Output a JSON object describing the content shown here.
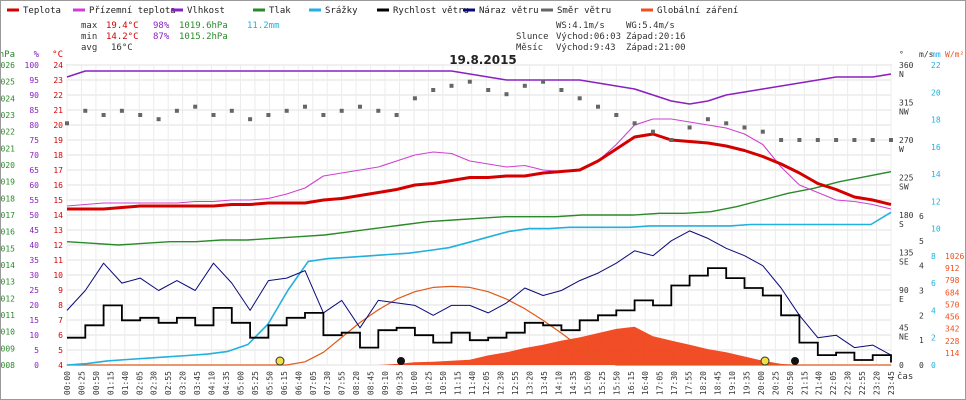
{
  "legend": [
    {
      "label": "Teplota",
      "color": "#d40000"
    },
    {
      "label": "Přízemní teplota",
      "color": "#d040d0"
    },
    {
      "label": "Vlhkost",
      "color": "#8a20c0"
    },
    {
      "label": "Tlak",
      "color": "#2a8a2a"
    },
    {
      "label": "Srážky",
      "color": "#22b0e0"
    },
    {
      "label": "Rychlost větru",
      "color": "#000000"
    },
    {
      "label": "Náraz větru",
      "color": "#0a0a7a"
    },
    {
      "label": "Směr větru",
      "color": "#666666"
    },
    {
      "label": "Globální záření",
      "color": "#f05020"
    }
  ],
  "stats": {
    "max": {
      "label": "max",
      "temp": "19.4°C",
      "hum": "98%",
      "press": "1019.6hPa",
      "rain": "11.2mm"
    },
    "min": {
      "label": "min",
      "temp": "14.2°C",
      "hum": "87%",
      "press": "1015.2hPa"
    },
    "avg": {
      "label": "avg",
      "temp": "16°C"
    }
  },
  "info": {
    "ws": "WS:4.1m/s",
    "wg": "WG:5.4m/s",
    "sun_label": "Slunce",
    "sun_rise": "Východ:06:03",
    "sun_set": "Západ:20:16",
    "moon_label": "Měsíc",
    "moon_rise": "Východ:9:43",
    "moon_set": "Západ:21:00"
  },
  "chart_data": {
    "type": "line",
    "title": "19.8.2015",
    "xlabel": "čas",
    "x_ticks": [
      "00:00",
      "00:25",
      "00:50",
      "01:15",
      "01:40",
      "02:05",
      "02:30",
      "02:55",
      "03:20",
      "03:45",
      "04:10",
      "04:35",
      "05:00",
      "05:25",
      "05:50",
      "06:15",
      "06:40",
      "07:05",
      "07:30",
      "07:55",
      "08:20",
      "08:45",
      "09:10",
      "09:35",
      "10:00",
      "10:25",
      "10:50",
      "11:15",
      "11:40",
      "12:05",
      "12:30",
      "12:55",
      "13:20",
      "13:45",
      "14:10",
      "14:35",
      "15:00",
      "15:25",
      "15:50",
      "16:15",
      "16:40",
      "17:05",
      "17:30",
      "17:55",
      "18:20",
      "18:45",
      "19:10",
      "19:35",
      "20:00",
      "20:25",
      "20:50",
      "21:15",
      "21:40",
      "22:05",
      "22:30",
      "22:55",
      "23:20",
      "23:45"
    ],
    "axes_left": [
      {
        "unit": "hPa",
        "color": "#2a8a2a",
        "ticks": [
          "1026",
          "1025",
          "1024",
          "1023",
          "1022",
          "1021",
          "1020",
          "1019",
          "1018",
          "1017",
          "1016",
          "1015",
          "1014",
          "1013",
          "1012",
          "1011",
          "1010",
          "1009",
          "1008"
        ]
      },
      {
        "unit": "%",
        "color": "#8a20c0",
        "ticks": [
          "100",
          "95",
          "90",
          "85",
          "80",
          "75",
          "70",
          "65",
          "60",
          "55",
          "50",
          "45",
          "40",
          "35",
          "30",
          "25",
          "20",
          "15",
          "10",
          "5",
          "0"
        ]
      },
      {
        "unit": "°C",
        "color": "#d40000",
        "ticks": [
          "24",
          "23",
          "22",
          "21",
          "20",
          "19",
          "18",
          "17",
          "16",
          "15",
          "14",
          "13",
          "12",
          "11",
          "10",
          "9",
          "8",
          "7",
          "6",
          "5",
          "4"
        ]
      }
    ],
    "axes_right": [
      {
        "unit": "°",
        "color": "#333333",
        "ticks": [
          "360",
          "315",
          "270",
          "225",
          "180",
          "135",
          "90",
          "45",
          "0"
        ],
        "labels": [
          "N",
          "NW",
          "W",
          "SW",
          "S",
          "SE",
          "E",
          "NE",
          ""
        ]
      },
      {
        "unit": "m/s",
        "color": "#333333",
        "ticks": [
          "6",
          "5",
          "4",
          "3",
          "2",
          "1",
          "0"
        ]
      },
      {
        "unit": "mm",
        "color": "#22b0e0",
        "ticks": [
          "22",
          "20",
          "18",
          "16",
          "14",
          "12",
          "10",
          "8",
          "6",
          "4",
          "2",
          "0"
        ]
      },
      {
        "unit": "W/m²",
        "color": "#f05020",
        "ticks": [
          "1026",
          "912",
          "798",
          "684",
          "570",
          "456",
          "342",
          "228",
          "114",
          ""
        ]
      }
    ],
    "temp_hourly": [
      14.4,
      14.4,
      14.4,
      14.5,
      14.6,
      14.6,
      14.6,
      14.6,
      14.6,
      14.7,
      14.7,
      14.8,
      14.8,
      14.8,
      15.0,
      15.1,
      15.3,
      15.5,
      15.7,
      16.0,
      16.1,
      16.3,
      16.5,
      16.5,
      16.6,
      16.6,
      16.8,
      16.9,
      17.0,
      17.6,
      18.4,
      19.2,
      19.4,
      19.0,
      18.9,
      18.8,
      18.6,
      18.3,
      17.9,
      17.4,
      16.8,
      16.1,
      15.7,
      15.2,
      15.0,
      14.7
    ],
    "ground_temp_hourly": [
      14.6,
      14.7,
      14.8,
      14.8,
      14.8,
      14.8,
      14.8,
      14.9,
      14.9,
      15.0,
      15.0,
      15.1,
      15.4,
      15.8,
      16.6,
      16.8,
      17.0,
      17.2,
      17.6,
      18.0,
      18.2,
      18.1,
      17.6,
      17.4,
      17.2,
      17.3,
      17.0,
      16.9,
      17.0,
      17.6,
      18.7,
      20.0,
      20.4,
      20.4,
      20.2,
      20.0,
      19.8,
      19.4,
      18.7,
      17.2,
      16.0,
      15.5,
      15.0,
      14.9,
      14.7,
      14.4
    ],
    "humidity_hourly": [
      96,
      98,
      98,
      98,
      98,
      98,
      98,
      98,
      98,
      98,
      98,
      98,
      98,
      98,
      98,
      98,
      98,
      98,
      98,
      98,
      98,
      98,
      97,
      96,
      95,
      95,
      95,
      95,
      95,
      94,
      93,
      92,
      90,
      88,
      87,
      88,
      90,
      91,
      92,
      93,
      94,
      95,
      96,
      96,
      96,
      97
    ],
    "pressure_hourly": [
      1015.4,
      1015.3,
      1015.2,
      1015.3,
      1015.4,
      1015.4,
      1015.5,
      1015.5,
      1015.6,
      1015.7,
      1015.8,
      1016.0,
      1016.2,
      1016.4,
      1016.6,
      1016.7,
      1016.8,
      1016.9,
      1016.9,
      1016.9,
      1017.0,
      1017.0,
      1017.0,
      1017.1,
      1017.1,
      1017.2,
      1017.5,
      1017.9,
      1018.3,
      1018.6,
      1019.0,
      1019.3,
      1019.6
    ],
    "rain_total_hourly": [
      0,
      0.1,
      0.3,
      0.4,
      0.5,
      0.6,
      0.7,
      0.8,
      1.0,
      1.5,
      3.0,
      5.5,
      7.6,
      7.8,
      7.9,
      8.0,
      8.1,
      8.2,
      8.4,
      8.6,
      9.0,
      9.4,
      9.8,
      10.0,
      10.0,
      10.1,
      10.1,
      10.1,
      10.1,
      10.2,
      10.2,
      10.2,
      10.2,
      10.2,
      10.3,
      10.3,
      10.3,
      10.3,
      10.3,
      10.3,
      10.3,
      11.2
    ],
    "wind_speed_hourly": [
      1.1,
      1.6,
      2.4,
      1.8,
      1.9,
      1.7,
      1.9,
      1.6,
      2.3,
      1.7,
      1.1,
      1.6,
      1.9,
      2.1,
      1.2,
      1.3,
      0.7,
      1.4,
      1.5,
      1.2,
      0.9,
      1.3,
      1.0,
      1.1,
      1.3,
      1.7,
      1.6,
      1.4,
      1.8,
      2.0,
      2.2,
      2.6,
      2.4,
      3.2,
      3.6,
      3.9,
      3.5,
      3.1,
      2.8,
      2.0,
      0.9,
      0.4,
      0.5,
      0.2,
      0.4,
      0.1
    ],
    "wind_gust_hourly": [
      2.2,
      3.0,
      4.1,
      3.3,
      3.5,
      3.0,
      3.4,
      3.0,
      4.1,
      3.3,
      2.2,
      3.4,
      3.5,
      3.8,
      2.1,
      2.6,
      1.5,
      2.6,
      2.5,
      2.4,
      2.0,
      2.4,
      2.4,
      2.1,
      2.5,
      3.1,
      2.8,
      3.0,
      3.4,
      3.7,
      4.1,
      4.6,
      4.4,
      5.0,
      5.4,
      5.1,
      4.7,
      4.4,
      4.0,
      3.1,
      2.0,
      1.1,
      1.2,
      0.7,
      0.8,
      0.4
    ],
    "wind_dir_hourly": [
      290,
      305,
      300,
      305,
      300,
      295,
      305,
      310,
      300,
      305,
      295,
      300,
      305,
      310,
      300,
      305,
      310,
      305,
      300,
      320,
      330,
      335,
      340,
      330,
      325,
      335,
      340,
      330,
      320,
      310,
      300,
      290,
      280,
      270,
      285,
      295,
      290,
      285,
      280,
      270,
      270,
      270,
      270,
      270,
      270,
      270
    ],
    "solar_hourly": [
      0,
      0,
      0,
      0,
      0,
      0,
      0,
      0,
      0,
      0,
      0,
      0,
      0,
      0,
      0,
      0,
      0,
      0,
      10,
      25,
      30,
      40,
      50,
      90,
      120,
      160,
      190,
      230,
      260,
      300,
      340,
      360,
      270,
      230,
      190,
      150,
      120,
      80,
      40,
      10,
      0,
      0,
      0,
      0,
      0,
      0
    ],
    "solar_clear_sky_hourly": [
      0,
      0,
      0,
      0,
      0,
      0,
      0,
      0,
      0,
      0,
      0,
      0,
      0,
      30,
      120,
      260,
      400,
      520,
      620,
      690,
      730,
      740,
      730,
      690,
      620,
      530,
      420,
      300,
      170,
      60,
      0,
      0,
      0,
      0,
      0,
      0,
      0,
      0,
      0,
      0,
      0,
      0,
      0,
      0,
      0,
      0
    ],
    "temp_range": [
      4,
      24
    ],
    "humidity_range": [
      0,
      100
    ],
    "pressure_range": [
      1008,
      1026
    ],
    "wind_speed_range": [
      0,
      6
    ],
    "rain_range": [
      0,
      22
    ],
    "solar_range": [
      0,
      1026
    ],
    "wind_dir_range": [
      0,
      360
    ],
    "grid": true
  }
}
